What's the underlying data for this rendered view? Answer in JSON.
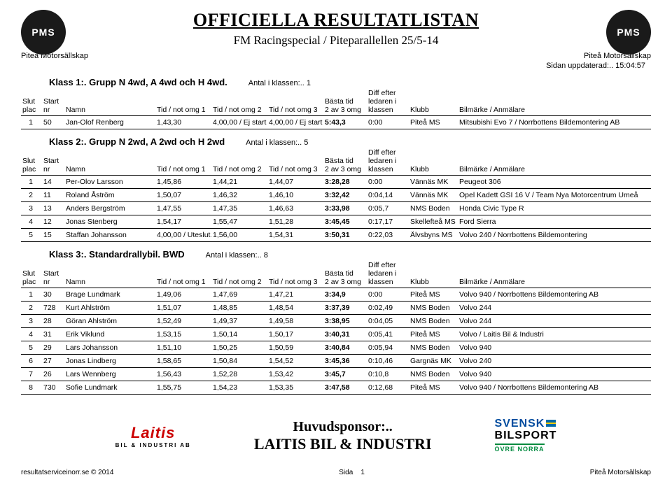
{
  "header": {
    "main_title": "OFFICIELLA RESULTATLISTAN",
    "subtitle": "FM Racingspecial / Piteparallellen 25/5-14",
    "org_left": "Piteå Motorsällskap",
    "org_right": "Piteå Motorsällskap",
    "logo_text": "PMS",
    "updated": "Sidan uppdaterad:.. 15:04:57"
  },
  "column_headers": {
    "slut": "Slut\nplac",
    "start": "Start\nnr",
    "namn": "Namn",
    "tid1": "Tid / not omg 1",
    "tid2": "Tid / not omg 2",
    "tid3": "Tid / not omg 3",
    "basta": "Bästa tid\n2 av 3 omg",
    "diff": "Diff efter\nledaren i\nklassen",
    "klubb": "Klubb",
    "bil": "Bilmärke / Anmälare"
  },
  "classes": [
    {
      "title": "Klass 1:. Grupp N 4wd, A 4wd och H 4wd.",
      "antal": "Antal i klassen:.. 1",
      "rows": [
        {
          "slut": "1",
          "start": "50",
          "namn": "Jan-Olof Renberg",
          "t1": "1,43,30",
          "t2": "4,00,00 / Ej start",
          "t3": "4,00,00 / Ej start",
          "basta": "5:43,3",
          "diff": "0:00",
          "klubb": "Piteå MS",
          "bil": "Mitsubishi Evo 7 / Norrbottens Bildemontering AB"
        }
      ]
    },
    {
      "title": "Klass 2:. Grupp N 2wd, A 2wd och H 2wd",
      "antal": "Antal i klassen:.. 5",
      "rows": [
        {
          "slut": "1",
          "start": "14",
          "namn": "Per-Olov Larsson",
          "t1": "1,45,86",
          "t2": "1,44,21",
          "t3": "1,44,07",
          "basta": "3:28,28",
          "diff": "0:00",
          "klubb": "Vännäs MK",
          "bil": "Peugeot 306"
        },
        {
          "slut": "2",
          "start": "11",
          "namn": "Roland Åström",
          "t1": "1,50,07",
          "t2": "1,46,32",
          "t3": "1,46,10",
          "basta": "3:32,42",
          "diff": "0:04,14",
          "klubb": "Vännäs MK",
          "bil": "Opel Kadett GSI 16 V / Team Nya Motorcentrum Umeå"
        },
        {
          "slut": "3",
          "start": "13",
          "namn": "Anders Bergström",
          "t1": "1,47,55",
          "t2": "1,47,35",
          "t3": "1,46,63",
          "basta": "3:33,98",
          "diff": "0:05,7",
          "klubb": "NMS Boden",
          "bil": "Honda Civic Type R"
        },
        {
          "slut": "4",
          "start": "12",
          "namn": "Jonas Stenberg",
          "t1": "1,54,17",
          "t2": "1,55,47",
          "t3": "1,51,28",
          "basta": "3:45,45",
          "diff": "0:17,17",
          "klubb": "Skellefteå MS",
          "bil": "Ford Sierra"
        },
        {
          "slut": "5",
          "start": "15",
          "namn": "Staffan Johansson",
          "t1": "4,00,00 / Uteslut.",
          "t2": "1,56,00",
          "t3": "1,54,31",
          "basta": "3:50,31",
          "diff": "0:22,03",
          "klubb": "Älvsbyns MS",
          "bil": "Volvo 240 / Norrbottens Bildemontering"
        }
      ]
    },
    {
      "title": "Klass 3:. Standardrallybil. BWD",
      "antal": "Antal i klassen:.. 8",
      "rows": [
        {
          "slut": "1",
          "start": "30",
          "namn": "Brage Lundmark",
          "t1": "1,49,06",
          "t2": "1,47,69",
          "t3": "1,47,21",
          "basta": "3:34,9",
          "diff": "0:00",
          "klubb": "Piteå MS",
          "bil": "Volvo 940 / Norrbottens Bildemontering AB"
        },
        {
          "slut": "2",
          "start": "728",
          "namn": "Kurt Ahlström",
          "t1": "1,51,07",
          "t2": "1,48,85",
          "t3": "1,48,54",
          "basta": "3:37,39",
          "diff": "0:02,49",
          "klubb": "NMS Boden",
          "bil": "Volvo 244"
        },
        {
          "slut": "3",
          "start": "28",
          "namn": "Göran Ahlström",
          "t1": "1,52,49",
          "t2": "1,49,37",
          "t3": "1,49,58",
          "basta": "3:38,95",
          "diff": "0:04,05",
          "klubb": "NMS Boden",
          "bil": "Volvo 244"
        },
        {
          "slut": "4",
          "start": "31",
          "namn": "Erik Viklund",
          "t1": "1,53,15",
          "t2": "1,50,14",
          "t3": "1,50,17",
          "basta": "3:40,31",
          "diff": "0:05,41",
          "klubb": "Piteå MS",
          "bil": "Volvo / Laitis Bil & Industri"
        },
        {
          "slut": "5",
          "start": "29",
          "namn": "Lars Johansson",
          "t1": "1,51,10",
          "t2": "1,50,25",
          "t3": "1,50,59",
          "basta": "3:40,84",
          "diff": "0:05,94",
          "klubb": "NMS Boden",
          "bil": "Volvo 940"
        },
        {
          "slut": "6",
          "start": "27",
          "namn": "Jonas Lindberg",
          "t1": "1,58,65",
          "t2": "1,50,84",
          "t3": "1,54,52",
          "basta": "3:45,36",
          "diff": "0:10,46",
          "klubb": "Gargnäs MK",
          "bil": "Volvo 240"
        },
        {
          "slut": "7",
          "start": "26",
          "namn": "Lars Wennberg",
          "t1": "1,56,43",
          "t2": "1,52,28",
          "t3": "1,53,42",
          "basta": "3:45,7",
          "diff": "0:10,8",
          "klubb": "NMS Boden",
          "bil": "Volvo 940"
        },
        {
          "slut": "8",
          "start": "730",
          "namn": "Sofie Lundmark",
          "t1": "1,55,75",
          "t2": "1,54,23",
          "t3": "1,53,35",
          "basta": "3:47,58",
          "diff": "0:12,68",
          "klubb": "Piteå MS",
          "bil": "Volvo 940 / Norrbottens Bildemontering AB"
        }
      ]
    }
  ],
  "sponsor": {
    "heading": "Huvudsponsor:..",
    "name": "LAITIS BIL & INDUSTRI",
    "laitis_big": "Laitis",
    "laitis_small": "BIL & INDUSTRI AB",
    "sv1": "SVENSK",
    "sv2": "BILSPORT",
    "sv3": "ÖVRE NORRA"
  },
  "footer": {
    "left": "resultatserviceinorr.se © 2014",
    "mid": "Sida",
    "page": "1",
    "right": "Piteå Motorsällskap"
  }
}
